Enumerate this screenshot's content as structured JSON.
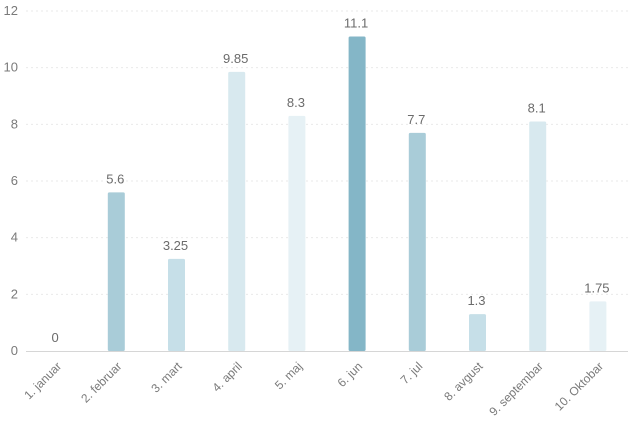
{
  "chart_data": {
    "type": "bar",
    "title": "",
    "xlabel": "",
    "ylabel": "",
    "ylim": [
      0,
      12
    ],
    "yticks": [
      0,
      2,
      4,
      6,
      8,
      10,
      12
    ],
    "grid": true,
    "categories": [
      "1. januar",
      "2. februar",
      "3. mart",
      "4. april",
      "5. maj",
      "6. jun",
      "7. jul",
      "8. avgust",
      "9. septembar",
      "10. Oktobar"
    ],
    "values": [
      0,
      5.6,
      3.25,
      9.85,
      8.3,
      11.1,
      7.7,
      1.3,
      8.1,
      1.75
    ],
    "value_labels": [
      "0",
      "5.6",
      "3.25",
      "9.85",
      "8.3",
      "11.1",
      "7.7",
      "1.3",
      "8.1",
      "1.75"
    ],
    "bar_colors": [
      "#e6f1f5",
      "#a9ccd8",
      "#c6dfe8",
      "#d8e9ef",
      "#e6f1f5",
      "#84b6c7",
      "#a9ccd8",
      "#c6dfe8",
      "#d8e9ef",
      "#e6f1f5"
    ]
  }
}
